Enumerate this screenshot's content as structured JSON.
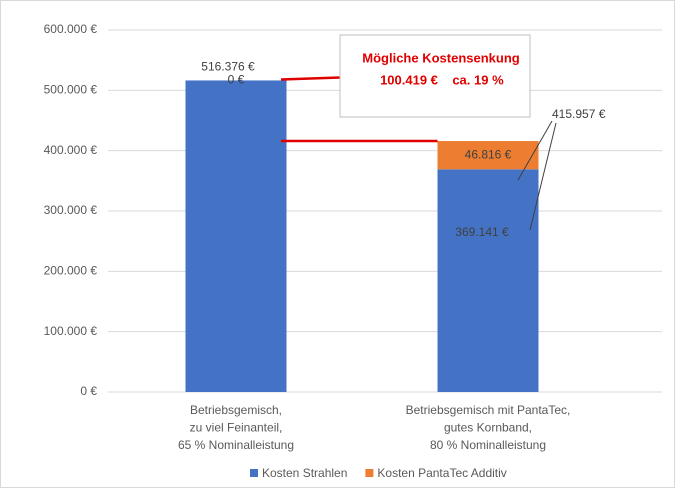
{
  "chart_data": {
    "type": "stacked_bar",
    "categories": [
      [
        "Betriebsgemisch,",
        "zu viel Feinanteil,",
        "65 % Nominalleistung"
      ],
      [
        "Betriebsgemisch mit PantaTec,",
        "gutes Kornband,",
        "80 % Nominalleistung"
      ]
    ],
    "series": [
      {
        "name": "Kosten Strahlen",
        "color": "#4472c4",
        "values": [
          516376,
          369141
        ],
        "value_labels": [
          "516.376 €",
          "369.141 €"
        ]
      },
      {
        "name": "Kosten PantaTec Additiv",
        "color": "#ed7d31",
        "values": [
          0,
          46816
        ],
        "value_labels": [
          "0 €",
          "46.816 €"
        ]
      }
    ],
    "total_annotation": {
      "value": 415957,
      "label": "415.957 €"
    },
    "callout": {
      "title": "Mögliche Kostensenkung",
      "lines": [
        "100.419 €",
        "ca. 19 %"
      ]
    },
    "reference_color": "#e00000",
    "ylim": [
      0,
      600000
    ],
    "yticks": [
      {
        "value": 0,
        "label": "0 €"
      },
      {
        "value": 100000,
        "label": "100.000 €"
      },
      {
        "value": 200000,
        "label": "200.000 €"
      },
      {
        "value": 300000,
        "label": "300.000 €"
      },
      {
        "value": 400000,
        "label": "400.000 €"
      },
      {
        "value": 500000,
        "label": "500.000 €"
      },
      {
        "value": 600000,
        "label": "600.000 €"
      }
    ],
    "grid": true,
    "legend": "bottom"
  }
}
